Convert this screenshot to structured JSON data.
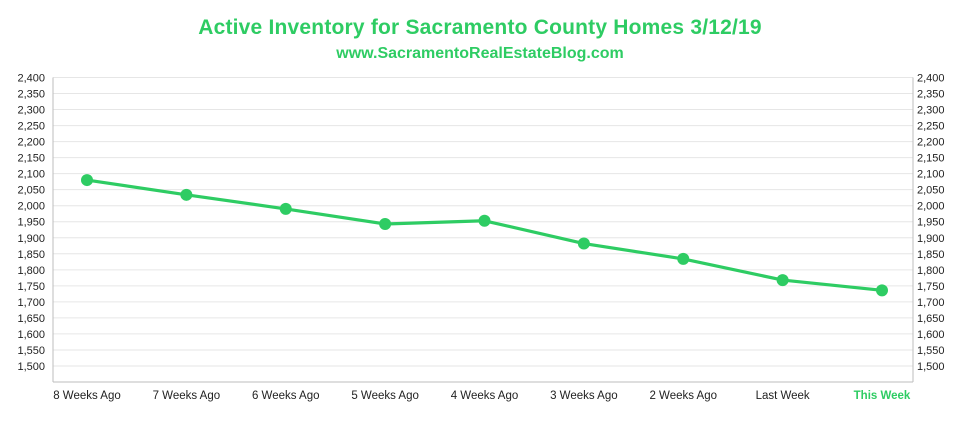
{
  "chart_data": {
    "type": "line",
    "title": "Active Inventory for Sacramento County Homes 3/12/19",
    "subtitle": "www.SacramentoRealEstateBlog.com",
    "categories": [
      "8 Weeks Ago",
      "7 Weeks Ago",
      "6 Weeks Ago",
      "5 Weeks Ago",
      "4 Weeks Ago",
      "3 Weeks Ago",
      "2 Weeks Ago",
      "Last Week",
      "This Week"
    ],
    "series": [
      {
        "values": [
          2080,
          2034,
          1990,
          1943,
          1953,
          1882,
          1834,
          1768,
          1736
        ]
      }
    ],
    "ylim": [
      1450,
      2400
    ],
    "yticks": [
      "1,500",
      "1,550",
      "1,600",
      "1,650",
      "1,700",
      "1,750",
      "1,800",
      "1,850",
      "1,900",
      "1,950",
      "2,000",
      "2,050",
      "2,100",
      "2,150",
      "2,200",
      "2,250",
      "2,300",
      "2,350",
      "2,400"
    ],
    "ytick_values": [
      1500,
      1550,
      1600,
      1650,
      1700,
      1750,
      1800,
      1850,
      1900,
      1950,
      2000,
      2050,
      2100,
      2150,
      2200,
      2250,
      2300,
      2350,
      2400
    ],
    "highlight_category": "This Week",
    "axes": "left-and-right",
    "grid": true,
    "legend": "none",
    "colors": {
      "line": "#2ecc63",
      "title": "#2ecc63",
      "grid": "#e6e6e6",
      "text": "#222222"
    }
  }
}
